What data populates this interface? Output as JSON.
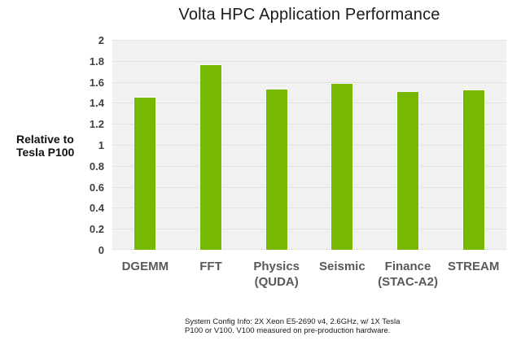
{
  "title": "Volta HPC Application Performance",
  "y_axis": {
    "title_line1": "Relative to",
    "title_line2": "Tesla P100"
  },
  "footer": {
    "line1": "System Config Info: 2X Xeon E5-2690 v4, 2.6GHz, w/ 1X Tesla",
    "line2": "P100 or V100. V100 measured on pre-production hardware."
  },
  "colors": {
    "bar": "#76b900",
    "plot_bg": "#f1f1f1",
    "gridline": "#e2e2e3",
    "title_text": "#1a1a1a",
    "tick_label": "#3f3f3f",
    "category_label": "#595959"
  },
  "chart_data": {
    "type": "bar",
    "title": "Volta HPC Application Performance",
    "categories": [
      "DGEMM",
      "FFT",
      "Physics (QUDA)",
      "Seismic",
      "Finance (STAC-A2)",
      "STREAM"
    ],
    "category_lines": [
      [
        "DGEMM"
      ],
      [
        "FFT"
      ],
      [
        "Physics",
        "(QUDA)"
      ],
      [
        "Seismic"
      ],
      [
        "Finance",
        "(STAC-A2)"
      ],
      [
        "STREAM"
      ]
    ],
    "values": [
      1.45,
      1.76,
      1.53,
      1.58,
      1.5,
      1.52
    ],
    "xlabel": "",
    "ylabel": "Relative to Tesla P100",
    "ylim": [
      0,
      2
    ],
    "yticks": [
      0,
      0.2,
      0.4,
      0.6,
      0.8,
      1,
      1.2,
      1.4,
      1.6,
      1.8,
      2
    ],
    "grid": true,
    "legend_position": "none",
    "bar_color": "#76b900"
  }
}
